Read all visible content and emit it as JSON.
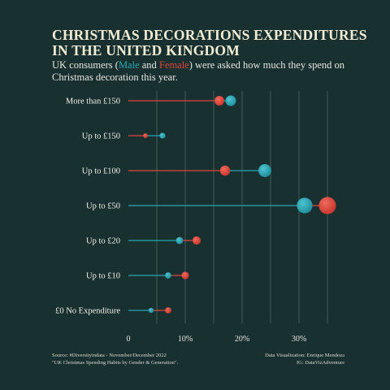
{
  "header": {
    "title_line1": "CHRISTMAS DECORATIONS EXPENDITURES",
    "title_line2": "IN THE UNITED KINGDOM",
    "subtitle_pre": "UK consumers (",
    "subtitle_male": "Male",
    "subtitle_and": " and ",
    "subtitle_female": "Female",
    "subtitle_post": ") were asked how much they spend on Christmas decoration this year."
  },
  "footer": {
    "source_line1": "Source: #Diversityindata - November/December 2022",
    "source_line2": "\"UK Christmas Spending Habits by Gender & Generation\".",
    "credit_line1": "Data Visualization: Enrique Mendoza",
    "credit_line2": "IG: DataVizAdventure"
  },
  "colors": {
    "background": "#183130",
    "male": "#2aa6b4",
    "female": "#e0443a",
    "grid": "#5f7a76"
  },
  "chart_data": {
    "type": "dot",
    "categories": [
      "More than £150",
      "Up to £150",
      "Up to £100",
      "Up to £50",
      "Up to £20",
      "Up to £10",
      "£0 No Expenditure"
    ],
    "series": [
      {
        "name": "Male",
        "values": [
          18,
          6,
          24,
          31,
          9,
          7,
          4
        ]
      },
      {
        "name": "Female",
        "values": [
          16,
          3,
          17,
          35,
          12,
          10,
          7
        ]
      }
    ],
    "xticks": [
      "0",
      "10%",
      "20%",
      "30%"
    ],
    "xtick_values": [
      0,
      10,
      20,
      30
    ],
    "xlim": [
      0,
      38
    ],
    "grid": true
  }
}
